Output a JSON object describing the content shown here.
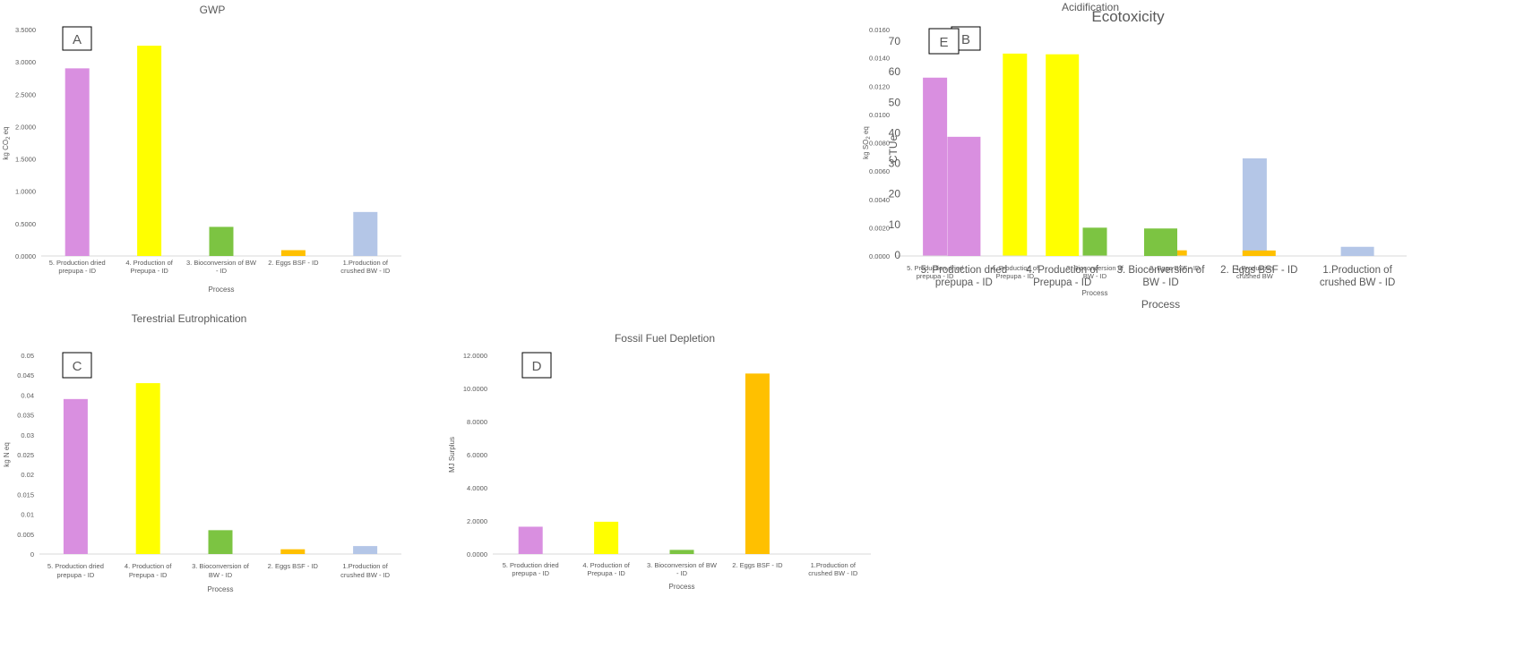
{
  "chart_data": [
    {
      "id": "A",
      "type": "bar",
      "title": "GWP",
      "ylabel": "kg CO2 eq",
      "ylabel_parts": [
        "kg CO",
        "2",
        " eq"
      ],
      "xlabel": "Process",
      "ylim": [
        0,
        3.5
      ],
      "yticks": [
        "0.0000",
        "0.5000",
        "1.0000",
        "1.5000",
        "2.0000",
        "2.5000",
        "3.0000",
        "3.5000"
      ],
      "categories": [
        [
          "5. Production dried",
          "prepupa - ID"
        ],
        [
          "4. Production of",
          "Prepupa - ID"
        ],
        [
          "3. Bioconversion of BW",
          "- ID"
        ],
        [
          "2. Eggs BSF - ID"
        ],
        [
          "1.Production of",
          "crushed BW - ID"
        ]
      ],
      "values": [
        2.9,
        3.25,
        0.45,
        0.09,
        0.68
      ],
      "colors": [
        "#d98fe0",
        "#ffff00",
        "#7cc442",
        "#ffc000",
        "#b4c6e7"
      ]
    },
    {
      "id": "B",
      "type": "bar",
      "title": "Acidification",
      "ylabel": "kg SO2 eq",
      "ylabel_parts": [
        "kg SO",
        "2",
        " eq"
      ],
      "xlabel": "Process",
      "ylim": [
        0,
        0.016
      ],
      "yticks": [
        "0.0000",
        "0.0020",
        "0.0040",
        "0.0060",
        "0.0080",
        "0.0100",
        "0.0120",
        "0.0140",
        "0.0160"
      ],
      "categories": [
        [
          "5. Production dried",
          "prepupa - ID"
        ],
        [
          "4. Production of",
          "Prepupa - ID"
        ],
        [
          "3. Bioconversion of",
          "BW - ID"
        ],
        [
          "2. Eggs BSF - ID"
        ],
        [
          "1.Production",
          "crushed BW"
        ]
      ],
      "values": [
        0.0126,
        0.0143,
        0.002,
        0.0004,
        0.0069
      ],
      "colors": [
        "#d98fe0",
        "#ffff00",
        "#7cc442",
        "#ffc000",
        "#b4c6e7"
      ]
    },
    {
      "id": "C",
      "type": "bar",
      "title": "Terestrial Eutrophication",
      "ylabel": "kg N eq",
      "xlabel": "Process",
      "ylim": [
        0,
        0.05
      ],
      "yticks": [
        "0",
        "0.005",
        "0.01",
        "0.015",
        "0.02",
        "0.025",
        "0.03",
        "0.035",
        "0.04",
        "0.045",
        "0.05"
      ],
      "categories": [
        [
          "5. Production dried",
          "prepupa - ID"
        ],
        [
          "4. Production of",
          "Prepupa - ID"
        ],
        [
          "3. Bioconversion of",
          "BW - ID"
        ],
        [
          "2. Eggs BSF - ID"
        ],
        [
          "1.Production of",
          "crushed BW - ID"
        ]
      ],
      "values": [
        0.039,
        0.043,
        0.006,
        0.0012,
        0.002
      ],
      "colors": [
        "#d98fe0",
        "#ffff00",
        "#7cc442",
        "#ffc000",
        "#b4c6e7"
      ]
    },
    {
      "id": "D",
      "type": "bar",
      "title": "Fossil Fuel Depletion",
      "ylabel": "MJ Surplus",
      "xlabel": "Process",
      "ylim": [
        0,
        12
      ],
      "yticks": [
        "0.0000",
        "2.0000",
        "4.0000",
        "6.0000",
        "8.0000",
        "10.0000",
        "12.0000"
      ],
      "categories": [
        [
          "5. Production dried",
          "prepupa - ID"
        ],
        [
          "4. Production of",
          "Prepupa - ID"
        ],
        [
          "3. Bioconversion of BW",
          "- ID"
        ],
        [
          "2. Eggs BSF - ID"
        ],
        [
          "1.Production of",
          "crushed BW - ID"
        ]
      ],
      "values": [
        1.65,
        1.95,
        0.25,
        10.9,
        0.0
      ],
      "colors": [
        "#d98fe0",
        "#ffff00",
        "#7cc442",
        "#ffc000",
        "#b4c6e7"
      ]
    },
    {
      "id": "E",
      "type": "bar",
      "title": "Ecotoxicity",
      "ylabel": "CTUe",
      "xlabel": "Process",
      "ylim": [
        0,
        70
      ],
      "yticks": [
        "0",
        "10",
        "20",
        "30",
        "40",
        "50",
        "60",
        "70"
      ],
      "categories": [
        [
          "5. Production dried",
          "prepupa - ID"
        ],
        [
          "4. Production of",
          "Prepupa - ID"
        ],
        [
          "3. Bioconversion of",
          "BW - ID"
        ],
        [
          "2. Eggs BSF - ID"
        ],
        [
          "1.Production of",
          "crushed BW - ID"
        ]
      ],
      "values": [
        39,
        66,
        9,
        1.8,
        3
      ],
      "colors": [
        "#d98fe0",
        "#ffff00",
        "#7cc442",
        "#ffc000",
        "#b4c6e7"
      ]
    }
  ]
}
